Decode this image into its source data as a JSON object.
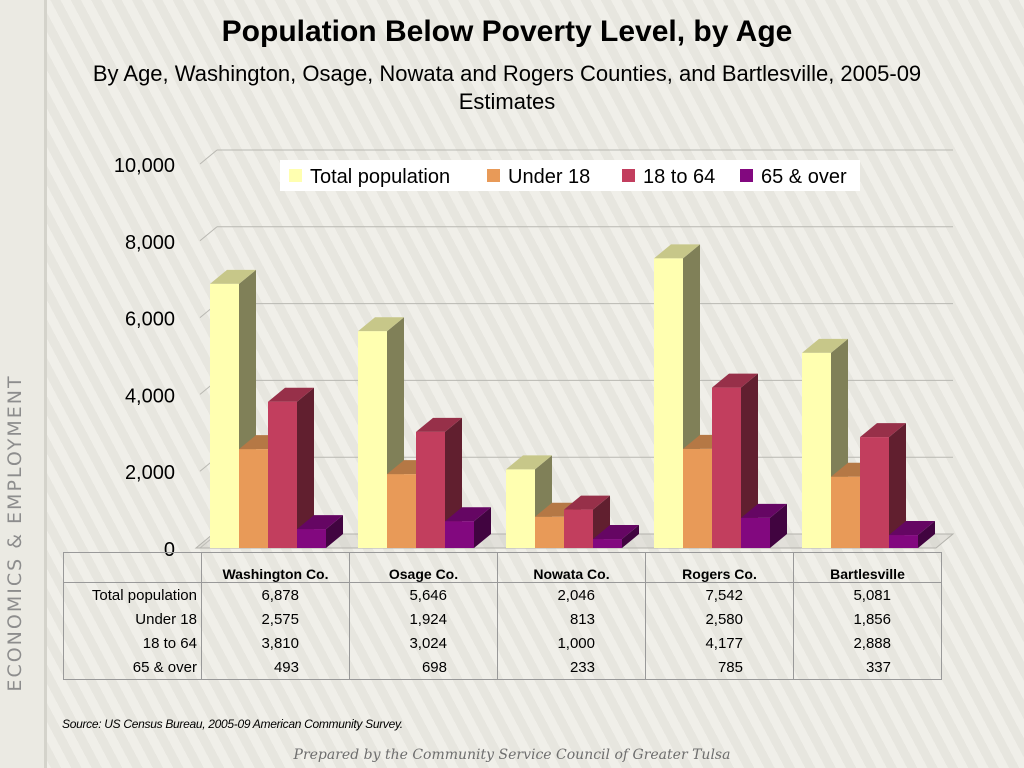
{
  "sidebar_label": "ECONOMICS & EMPLOYMENT",
  "chart_data": {
    "type": "bar",
    "title": "Population Below Poverty Level, by Age",
    "subtitle": "By Age, Washington, Osage, Nowata and Rogers Counties, and Bartlesville, 2005-09 Estimates",
    "categories": [
      "Washington Co.",
      "Osage Co.",
      "Nowata Co.",
      "Rogers Co.",
      "Bartlesville"
    ],
    "series": [
      {
        "name": "Total population",
        "color": "#ffffb0",
        "values": [
          6878,
          5646,
          2046,
          7542,
          5081
        ],
        "display": [
          "6,878",
          "5,646",
          "2,046",
          "7,542",
          "5,081"
        ]
      },
      {
        "name": "Under 18",
        "color": "#e89a58",
        "values": [
          2575,
          1924,
          813,
          2580,
          1856
        ],
        "display": [
          "2,575",
          "1,924",
          "813",
          "2,580",
          "1,856"
        ]
      },
      {
        "name": "18 to 64",
        "color": "#c23e5e",
        "values": [
          3810,
          3024,
          1000,
          4177,
          2888
        ],
        "display": [
          "3,810",
          "3,024",
          "1,000",
          "4,177",
          "2,888"
        ]
      },
      {
        "name": "65 & over",
        "color": "#82087f",
        "values": [
          493,
          698,
          233,
          785,
          337
        ],
        "display": [
          "493",
          "698",
          "233",
          "785",
          "337"
        ]
      }
    ],
    "yticks": [
      "0",
      "2,000",
      "4,000",
      "6,000",
      "8,000",
      "10,000"
    ],
    "ylim": [
      0,
      10000
    ],
    "grid": true,
    "legend_position": "top"
  },
  "source": "Source:  US Census Bureau, 2005-09 American Community Survey.",
  "footer": "Prepared by the Community Service Council of Greater Tulsa"
}
